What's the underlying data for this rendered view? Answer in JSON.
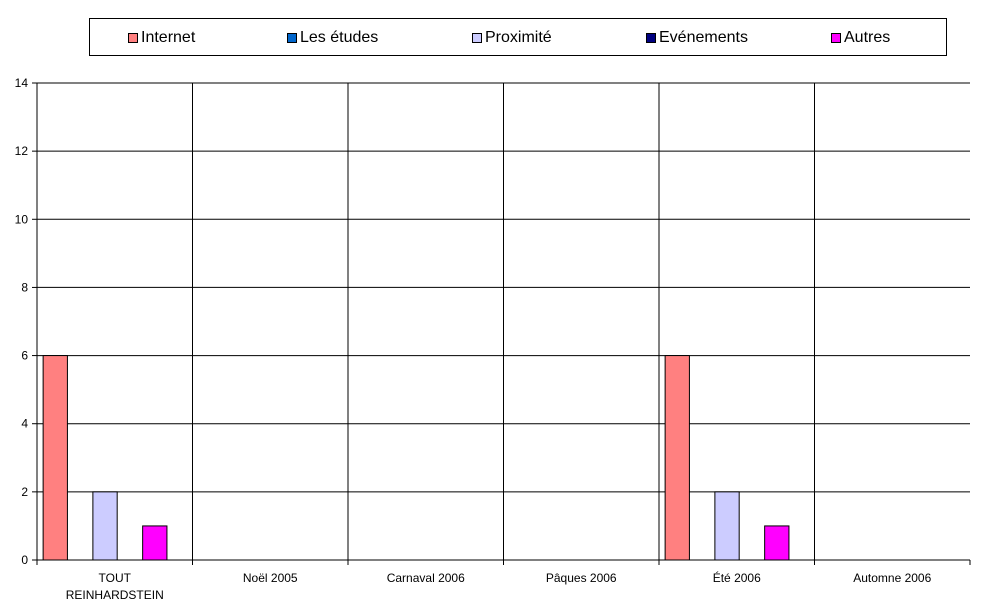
{
  "chart_data": {
    "type": "bar",
    "title": "",
    "xlabel": "",
    "ylabel": "",
    "ylim": [
      0,
      14
    ],
    "yticks": [
      0,
      2,
      4,
      6,
      8,
      10,
      12,
      14
    ],
    "grid": true,
    "legend_position": "top",
    "categories": [
      [
        "TOUT",
        "REINHARDSTEIN"
      ],
      [
        "Noël 2005"
      ],
      [
        "Carnaval 2006"
      ],
      [
        "Pâques 2006"
      ],
      [
        "Été 2006"
      ],
      [
        "Automne 2006"
      ]
    ],
    "series": [
      {
        "name": "Internet",
        "color": "#FF8080",
        "values": [
          6,
          0,
          0,
          0,
          6,
          0
        ]
      },
      {
        "name": "Les études",
        "color": "#0066CC",
        "values": [
          0,
          0,
          0,
          0,
          0,
          0
        ]
      },
      {
        "name": "Proximité",
        "color": "#CCCCFF",
        "values": [
          2,
          0,
          0,
          0,
          2,
          0
        ]
      },
      {
        "name": "Evénements",
        "color": "#000080",
        "values": [
          0,
          0,
          0,
          0,
          0,
          0
        ]
      },
      {
        "name": "Autres",
        "color": "#FF00FF",
        "values": [
          1,
          0,
          0,
          0,
          1,
          0
        ]
      }
    ]
  }
}
